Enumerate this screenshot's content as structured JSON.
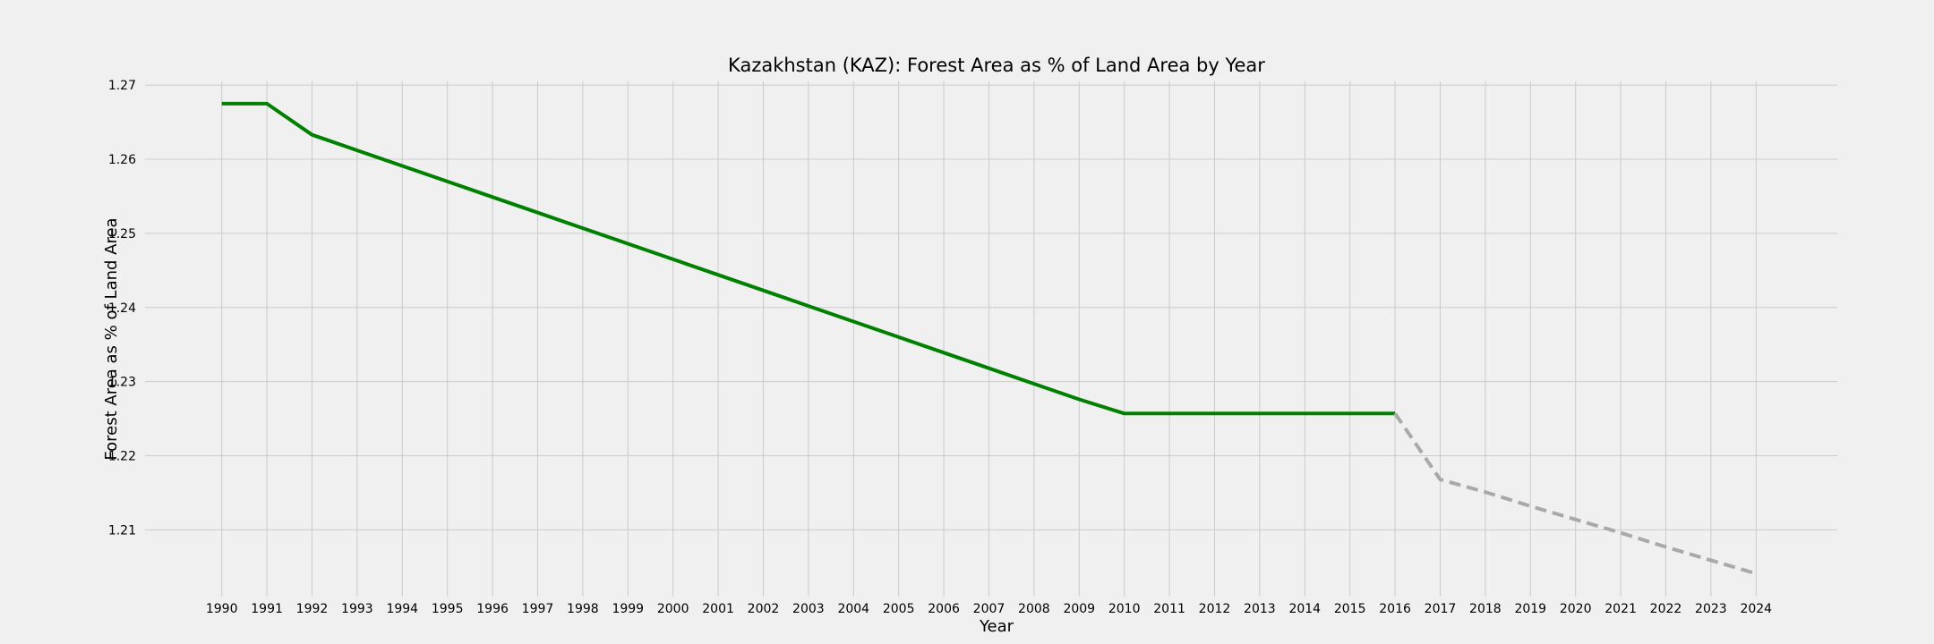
{
  "chart_data": {
    "type": "line",
    "title": "Kazakhstan (KAZ): Forest Area as % of Land Area by Year",
    "xlabel": "Year",
    "ylabel": "Forest Area as % of Land Area",
    "xlim": [
      1988.3,
      2025.8
    ],
    "ylim": [
      1.201,
      1.2705
    ],
    "y_ticks": [
      "1.21",
      "1.22",
      "1.23",
      "1.24",
      "1.25",
      "1.26",
      "1.27"
    ],
    "x_ticks": [
      "1990",
      "1991",
      "1992",
      "1993",
      "1994",
      "1995",
      "1996",
      "1997",
      "1998",
      "1999",
      "2000",
      "2001",
      "2002",
      "2003",
      "2004",
      "2005",
      "2006",
      "2007",
      "2008",
      "2009",
      "2010",
      "2011",
      "2012",
      "2013",
      "2014",
      "2015",
      "2016",
      "2017",
      "2018",
      "2019",
      "2020",
      "2021",
      "2022",
      "2023",
      "2024"
    ],
    "grid": true,
    "series": [
      {
        "style": "solid",
        "color": "#008000",
        "x": [
          1990,
          1991,
          1992,
          1993,
          1994,
          1995,
          1996,
          1997,
          1998,
          1999,
          2000,
          2001,
          2002,
          2003,
          2004,
          2005,
          2006,
          2007,
          2008,
          2009,
          2010,
          2011,
          2012,
          2013,
          2014,
          2015,
          2016
        ],
        "y": [
          1.2675,
          1.2675,
          1.2633,
          1.2612,
          1.2591,
          1.257,
          1.2549,
          1.2528,
          1.2507,
          1.2486,
          1.2465,
          1.2444,
          1.2423,
          1.2402,
          1.2381,
          1.236,
          1.2339,
          1.2318,
          1.2297,
          1.2276,
          1.2257,
          1.2257,
          1.2257,
          1.2257,
          1.2257,
          1.2257,
          1.2257
        ]
      },
      {
        "style": "dashed",
        "color": "#a9a9a9",
        "x": [
          2016,
          2017,
          2018,
          2019,
          2020,
          2021,
          2022,
          2023,
          2024
        ],
        "y": [
          1.2257,
          1.2168,
          1.2151,
          1.2132,
          1.2114,
          1.2096,
          1.2077,
          1.2059,
          1.2041
        ]
      }
    ]
  }
}
